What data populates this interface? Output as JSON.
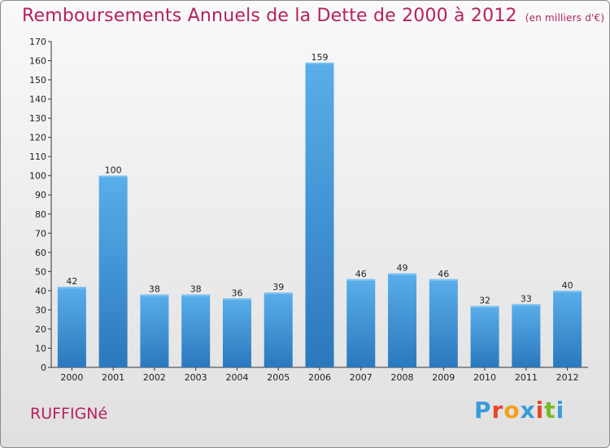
{
  "header": {
    "title": "Remboursements Annuels de la Dette de 2000 à 2012",
    "subtitle": "(en milliers d'€)"
  },
  "footer": {
    "town": "RUFFIGNé",
    "logo": "Proxiti",
    "logo_colors": [
      "#3a9ad9",
      "#e8452c",
      "#f2a01c",
      "#3a9ad9",
      "#e8452c",
      "#7ab828",
      "#3a9ad9"
    ]
  },
  "chart_data": {
    "type": "bar",
    "title": "Remboursements Annuels de la Dette de 2000 à 2012",
    "xlabel": "",
    "ylabel": "",
    "categories": [
      "2000",
      "2001",
      "2002",
      "2003",
      "2004",
      "2005",
      "2006",
      "2007",
      "2008",
      "2009",
      "2010",
      "2011",
      "2012"
    ],
    "values": [
      42,
      100,
      38,
      38,
      36,
      39,
      159,
      46,
      49,
      46,
      32,
      33,
      40
    ],
    "ylim": [
      0,
      170
    ],
    "yticks": [
      0,
      10,
      20,
      30,
      40,
      50,
      60,
      70,
      80,
      90,
      100,
      110,
      120,
      130,
      140,
      150,
      160,
      170
    ],
    "grid": false,
    "bar_color": "#4a9fe0",
    "bar_color_dark": "#2f7fc4"
  }
}
